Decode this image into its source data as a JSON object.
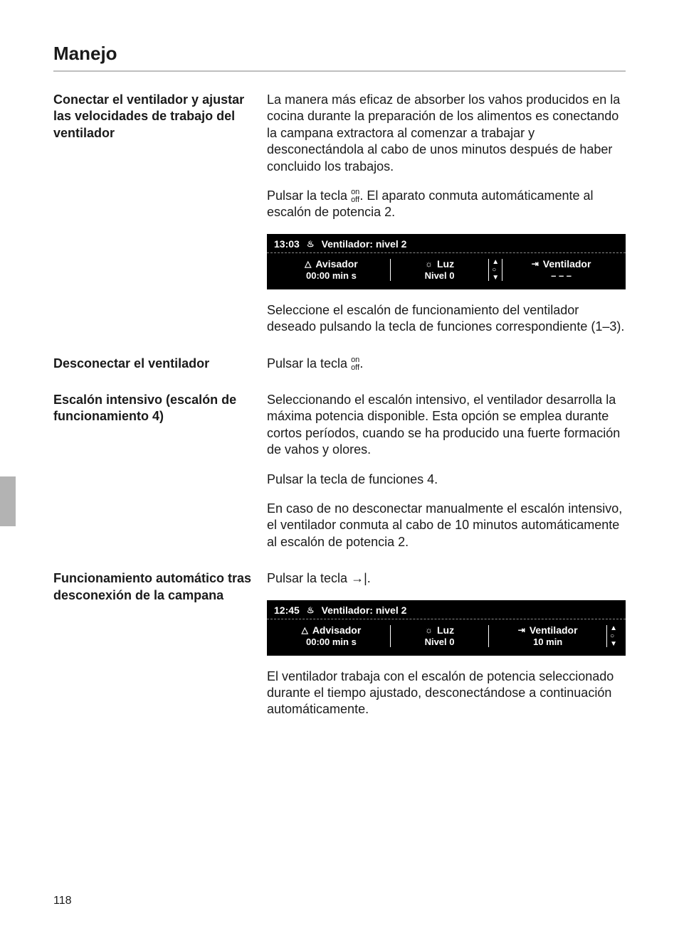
{
  "page_title": "Manejo",
  "page_number": "118",
  "sections": {
    "s1": {
      "heading": "Conectar el ventilador y ajustar las velocidades de trabajo del ventilador",
      "p1": "La manera más eficaz de absorber los vahos producidos en la cocina durante la preparación de los alimentos es conectando la campana extractora al comenzar a trabajar y desconectándola al cabo de unos minutos después de haber concluido los trabajos.",
      "p2a": "Pulsar la tecla ",
      "p2b": ". El aparato conmuta automáticamente al escalón de potencia 2.",
      "p3": "Seleccione el escalón de funcionamiento del ventilador deseado pulsando la tecla de funciones correspondiente (1–3)."
    },
    "s2": {
      "heading": "Desconectar el ventilador",
      "p1a": "Pulsar la tecla ",
      "p1b": "."
    },
    "s3": {
      "heading": "Escalón intensivo (escalón de funcionamiento 4)",
      "p1": "Seleccionando el escalón intensivo, el ventilador desarrolla la máxima potencia disponible. Esta opción se emplea durante cortos períodos, cuando se ha producido una fuerte formación de vahos y olores.",
      "p2": "Pulsar la tecla de funciones 4.",
      "p3": "En caso de no desconectar manualmente el escalón intensivo, el ventilador conmuta al cabo de 10 minutos automáticamente al escalón de potencia 2."
    },
    "s4": {
      "heading": "Funcionamiento automático tras desconexión de la campana",
      "p1a": "Pulsar la tecla ",
      "p1b": ".",
      "p2": "El ventilador trabaja con el escalón de potencia seleccionado durante el tiempo ajustado, desconectándose a continuación automáticamente."
    }
  },
  "panels": {
    "panel1": {
      "time": "13:03",
      "header_label": "Ventilador: nivel 2",
      "avisador_label": "Avisador",
      "avisador_value": "00:00 min s",
      "luz_label": "Luz",
      "luz_value": "Nivel 0",
      "vent_label": "Ventilador",
      "vent_value": "– – –"
    },
    "panel2": {
      "time": "12:45",
      "header_label": "Ventilador: nivel 2",
      "avisador_label": "Advisador",
      "avisador_value": "00:00 min s",
      "luz_label": "Luz",
      "luz_value": "Nivel 0",
      "vent_label": "Ventilador",
      "vent_value": "10 min"
    }
  },
  "onoff": {
    "on": "on",
    "off": "off"
  }
}
